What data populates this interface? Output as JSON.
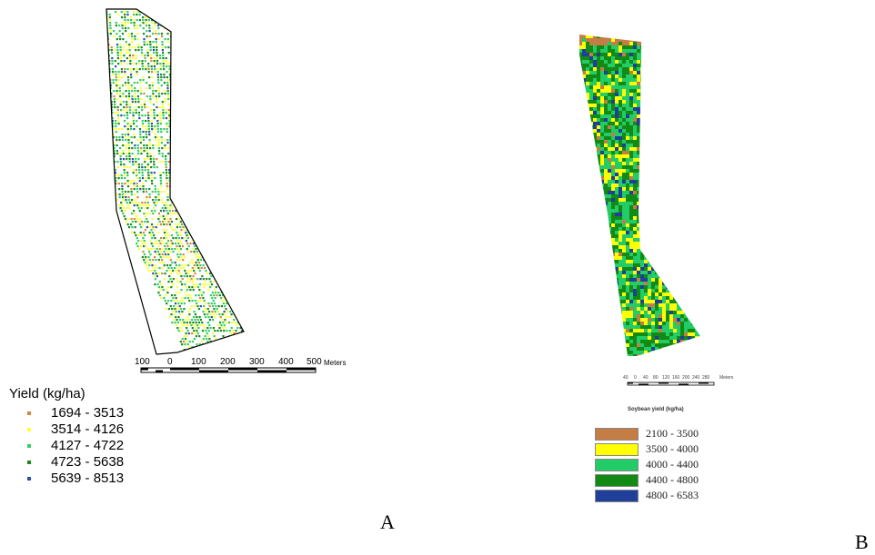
{
  "panel_a": {
    "label": "A",
    "legend_title": "Yield (kg/ha)",
    "classes": [
      {
        "range": "1694 - 3513",
        "color": "#d4883a"
      },
      {
        "range": "3514 - 4126",
        "color": "#ffff33"
      },
      {
        "range": "4127 - 4722",
        "color": "#33cc66"
      },
      {
        "range": "4723 - 5638",
        "color": "#1a8a1a"
      },
      {
        "range": "5639 - 8513",
        "color": "#2a4fa8"
      }
    ],
    "scale_ticks": [
      "100",
      "0",
      "100",
      "200",
      "300",
      "400",
      "500"
    ],
    "scale_unit": "Meters"
  },
  "panel_b": {
    "label": "B",
    "legend_title": "Soybean yield (kg/ha)",
    "classes": [
      {
        "range": "2100 - 3500",
        "color": "#c47d45"
      },
      {
        "range": "3500 - 4000",
        "color": "#ffff00"
      },
      {
        "range": "4000 - 4400",
        "color": "#22cc66"
      },
      {
        "range": "4400 - 4800",
        "color": "#138a13"
      },
      {
        "range": "4800 - 6583",
        "color": "#1f3f9a"
      }
    ],
    "scale_ticks": [
      "40",
      "0",
      "40",
      "80",
      "120",
      "160",
      "200",
      "240",
      "280"
    ],
    "scale_unit": "Meters"
  }
}
